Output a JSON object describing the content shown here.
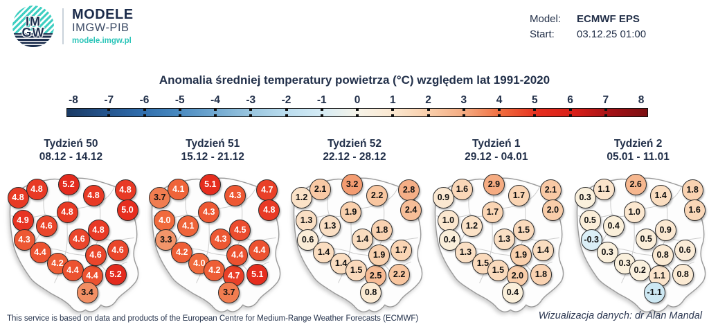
{
  "header": {
    "logo": {
      "icon_text_top": "IM",
      "icon_text_bottom": "GW",
      "brand": "MODELE",
      "brand_sub": "IMGW-PIB",
      "brand_url": "modele.imgw.pl"
    },
    "model_label": "Model:",
    "model_value": "ECMWF EPS",
    "start_label": "Start:",
    "start_value": "03.12.25 01:00"
  },
  "title": "Anomalia średniej temperatury powietrza (°C) względem lat 1991-2020",
  "colorbar": {
    "ticks": [
      "-8",
      "-7",
      "-6",
      "-5",
      "-4",
      "-3",
      "-2",
      "-1",
      "0",
      "1",
      "2",
      "3",
      "4",
      "5",
      "6",
      "7",
      "8"
    ],
    "colors": [
      "#1a3a64",
      "#24538b",
      "#2f6cab",
      "#4788bf",
      "#6ea6cf",
      "#97c4de",
      "#b9dcee",
      "#d4ebf5",
      "#f6f3e8",
      "#fbe7cf",
      "#f9cda9",
      "#f4a87e",
      "#f06a3c",
      "#e62e1f",
      "#d81f18",
      "#a31116",
      "#7c0f12"
    ]
  },
  "chart_data": {
    "type": "heatmap",
    "subtype": "poland-map-anomaly-bubbles",
    "title": "Anomalia średniej temperatury powietrza (°C) względem lat 1991-2020",
    "unit": "°C",
    "scale_min": -8,
    "scale_max": 8,
    "badge_scale": {
      "positive": [
        "#faf4e2",
        "#fbe7cf",
        "#f9cda9",
        "#f4a87e",
        "#f06a3c",
        "#e62e1f",
        "#d81f18",
        "#a31116",
        "#7c0f12"
      ],
      "negative": [
        "#e0f1f8",
        "#cfe9f4",
        "#b9dcee",
        "#97c4de",
        "#6ea6cf",
        "#4788bf",
        "#2f6cab",
        "#24538b",
        "#1a3a64"
      ]
    },
    "points_xy": [
      [
        26,
        37
      ],
      [
        53,
        25
      ],
      [
        99,
        18
      ],
      [
        135,
        34
      ],
      [
        181,
        26
      ],
      [
        184,
        55
      ],
      [
        97,
        58
      ],
      [
        33,
        70
      ],
      [
        67,
        78
      ],
      [
        142,
        84
      ],
      [
        35,
        98
      ],
      [
        114,
        97
      ],
      [
        58,
        116
      ],
      [
        83,
        132
      ],
      [
        105,
        142
      ],
      [
        133,
        150
      ],
      [
        138,
        120
      ],
      [
        170,
        113
      ],
      [
        167,
        148
      ],
      [
        126,
        174
      ]
    ],
    "panels": [
      {
        "week_label": "Tydzień 50",
        "date_range": "08.12 - 14.12",
        "values": [
          4.8,
          4.8,
          5.2,
          4.8,
          4.8,
          5.0,
          4.8,
          4.9,
          4.6,
          4.8,
          4.3,
          4.6,
          4.4,
          4.2,
          4.4,
          4.4,
          4.6,
          4.6,
          5.2,
          3.4
        ]
      },
      {
        "week_label": "Tydzień 51",
        "date_range": "15.12 - 21.12",
        "values": [
          3.7,
          4.1,
          5.1,
          4.3,
          4.7,
          4.8,
          4.3,
          4.0,
          4.1,
          4.5,
          3.3,
          4.3,
          4.2,
          4.0,
          4.2,
          4.7,
          4.4,
          4.4,
          5.1,
          3.7
        ]
      },
      {
        "week_label": "Tydzień 52",
        "date_range": "22.12 - 28.12",
        "values": [
          1.2,
          2.1,
          3.2,
          2.2,
          2.8,
          2.4,
          1.9,
          1.3,
          1.3,
          1.8,
          0.6,
          1.4,
          1.4,
          1.4,
          1.5,
          2.5,
          1.9,
          1.7,
          2.2,
          0.8
        ]
      },
      {
        "week_label": "Tydzień 1",
        "date_range": "29.12 - 04.01",
        "values": [
          0.9,
          1.6,
          2.9,
          1.7,
          2.1,
          2.0,
          1.7,
          1.0,
          1.2,
          1.5,
          0.4,
          1.3,
          1.3,
          1.5,
          1.5,
          2.0,
          1.9,
          1.4,
          1.8,
          0.4
        ]
      },
      {
        "week_label": "Tydzień 2",
        "date_range": "05.01 - 11.01",
        "values": [
          0.3,
          1.1,
          2.6,
          1.4,
          1.8,
          1.6,
          1.0,
          0.5,
          0.4,
          0.9,
          -0.3,
          0.5,
          0.3,
          0.3,
          0.2,
          1.1,
          0.8,
          0.6,
          0.8,
          -1.1
        ]
      }
    ]
  },
  "footer": {
    "left": "This service is based on data and products of the European Centre for Medium-Range Weather Forecasts (ECMWF)",
    "right": "Wizualizacja danych: dr Alan Mandal"
  }
}
